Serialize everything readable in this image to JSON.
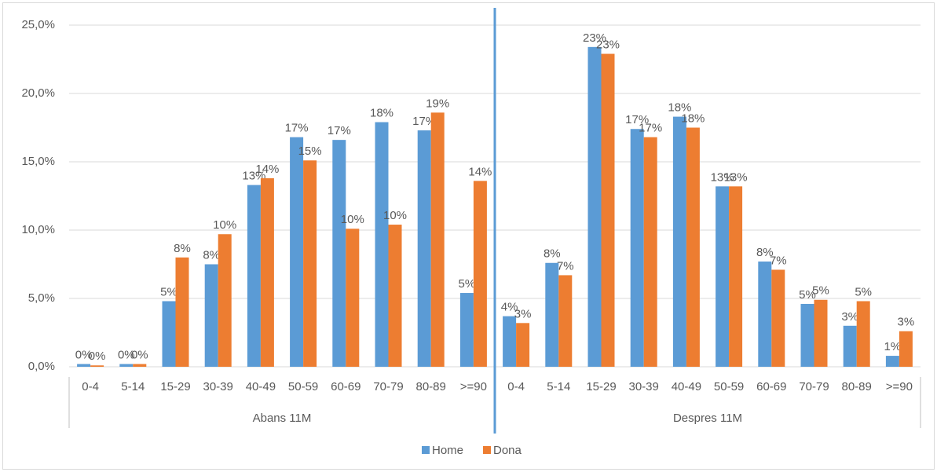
{
  "chart_data": {
    "type": "bar",
    "groups": [
      {
        "label": "Abans 11M",
        "categories": [
          "0-4",
          "5-14",
          "15-29",
          "30-39",
          "40-49",
          "50-59",
          "60-69",
          "70-79",
          "80-89",
          ">=90"
        ]
      },
      {
        "label": "Despres 11M",
        "categories": [
          "0-4",
          "5-14",
          "15-29",
          "30-39",
          "40-49",
          "50-59",
          "60-69",
          "70-79",
          "80-89",
          ">=90"
        ]
      }
    ],
    "series": [
      {
        "name": "Home",
        "color": "#5b9bd5",
        "values": [
          0.2,
          0.2,
          4.8,
          7.5,
          13.3,
          16.8,
          16.6,
          17.9,
          17.3,
          5.4,
          3.7,
          7.6,
          23.4,
          17.4,
          18.3,
          13.2,
          7.7,
          4.6,
          3.0,
          0.8
        ],
        "value_labels": [
          "0%",
          "0%",
          "5%",
          "8%",
          "13%",
          "17%",
          "17%",
          "18%",
          "17%",
          "5%",
          "4%",
          "8%",
          "23%",
          "17%",
          "18%",
          "13%",
          "8%",
          "5%",
          "3%",
          "1%"
        ]
      },
      {
        "name": "Dona",
        "color": "#ed7d31",
        "values": [
          0.1,
          0.2,
          8.0,
          9.7,
          13.8,
          15.1,
          10.1,
          10.4,
          18.6,
          13.6,
          3.2,
          6.7,
          22.9,
          16.8,
          17.5,
          13.2,
          7.1,
          4.9,
          4.8,
          2.6
        ],
        "value_labels": [
          "0%",
          "0%",
          "8%",
          "10%",
          "14%",
          "15%",
          "10%",
          "10%",
          "19%",
          "14%",
          "3%",
          "7%",
          "23%",
          "17%",
          "18%",
          "13%",
          "7%",
          "5%",
          "5%",
          "3%"
        ]
      }
    ],
    "ylim": [
      0,
      25
    ],
    "yticks": [
      {
        "value": 0,
        "label": "0,0%"
      },
      {
        "value": 5,
        "label": "5,0%"
      },
      {
        "value": 10,
        "label": "10,0%"
      },
      {
        "value": 15,
        "label": "15,0%"
      },
      {
        "value": 20,
        "label": "20,0%"
      },
      {
        "value": 25,
        "label": "25,0%"
      }
    ],
    "grid": true,
    "legend": "bottom"
  }
}
